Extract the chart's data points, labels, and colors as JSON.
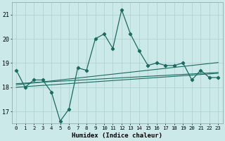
{
  "xlabel": "Humidex (Indice chaleur)",
  "x_values": [
    0,
    1,
    2,
    3,
    4,
    5,
    6,
    7,
    8,
    9,
    10,
    11,
    12,
    13,
    14,
    15,
    16,
    17,
    18,
    19,
    20,
    21,
    22,
    23
  ],
  "line_main": [
    18.7,
    18.0,
    18.3,
    18.3,
    17.8,
    16.6,
    17.1,
    18.8,
    18.7,
    20.0,
    20.2,
    19.6,
    21.2,
    20.2,
    19.5,
    18.9,
    19.0,
    18.9,
    18.9,
    19.0,
    18.3,
    18.7,
    18.4,
    18.4
  ],
  "trend1": [
    18.15,
    18.17,
    18.19,
    18.21,
    18.23,
    18.25,
    18.27,
    18.29,
    18.31,
    18.33,
    18.35,
    18.37,
    18.39,
    18.41,
    18.43,
    18.45,
    18.47,
    18.49,
    18.51,
    18.53,
    18.55,
    18.57,
    18.59,
    18.61
  ],
  "trend2": [
    18.0,
    18.025,
    18.05,
    18.075,
    18.1,
    18.125,
    18.15,
    18.175,
    18.2,
    18.225,
    18.25,
    18.275,
    18.3,
    18.325,
    18.35,
    18.375,
    18.4,
    18.425,
    18.45,
    18.475,
    18.5,
    18.525,
    18.55,
    18.575
  ],
  "trend3": [
    18.1,
    18.14,
    18.18,
    18.22,
    18.26,
    18.3,
    18.34,
    18.38,
    18.42,
    18.46,
    18.5,
    18.54,
    18.58,
    18.62,
    18.66,
    18.7,
    18.74,
    18.78,
    18.82,
    18.86,
    18.9,
    18.94,
    18.98,
    19.02
  ],
  "ylim": [
    16.5,
    21.5
  ],
  "xlim": [
    -0.5,
    23.5
  ],
  "yticks": [
    17,
    18,
    19,
    20,
    21
  ],
  "bg_color": "#cce9e9",
  "grid_color": "#aacfcf",
  "line_color": "#1a6b60",
  "figsize": [
    3.2,
    2.0
  ],
  "dpi": 100
}
